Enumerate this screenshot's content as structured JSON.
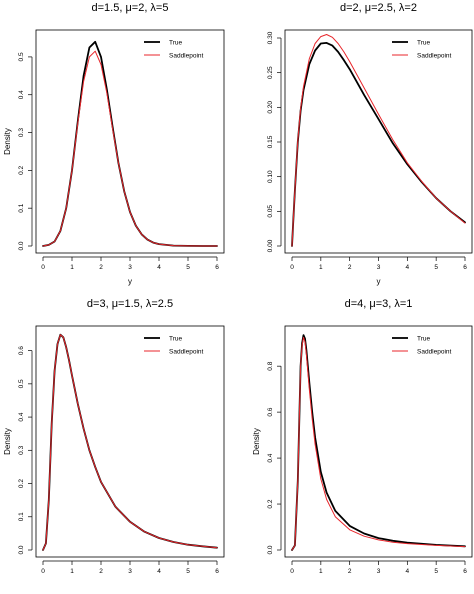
{
  "chart_data": [
    {
      "type": "line",
      "title": "d=1.5, μ=2, λ=5",
      "xlabel": "y",
      "ylabel": "Density",
      "xlim": [
        0,
        6
      ],
      "ylim": [
        0,
        0.55
      ],
      "xticks": [
        "0",
        "1",
        "2",
        "3",
        "4",
        "5",
        "6"
      ],
      "yticks": [
        "0.0",
        "0.1",
        "0.2",
        "0.3",
        "0.4",
        "0.5"
      ],
      "legend": "top-right",
      "series": [
        {
          "name": "True",
          "color": "#000000",
          "x": [
            0,
            0.2,
            0.4,
            0.6,
            0.8,
            1.0,
            1.2,
            1.4,
            1.6,
            1.8,
            2.0,
            2.2,
            2.4,
            2.6,
            2.8,
            3.0,
            3.2,
            3.4,
            3.6,
            3.8,
            4.0,
            4.5,
            5.0,
            5.5,
            6.0
          ],
          "y": [
            0,
            0.003,
            0.012,
            0.04,
            0.1,
            0.2,
            0.33,
            0.45,
            0.525,
            0.54,
            0.5,
            0.415,
            0.315,
            0.22,
            0.145,
            0.09,
            0.054,
            0.031,
            0.017,
            0.009,
            0.005,
            0.001,
            0.0003,
            0.0001,
            0
          ]
        },
        {
          "name": "Saddlepoint",
          "color": "#e8262b",
          "x": [
            0,
            0.2,
            0.4,
            0.6,
            0.8,
            1.0,
            1.2,
            1.4,
            1.6,
            1.8,
            2.0,
            2.2,
            2.4,
            2.6,
            2.8,
            3.0,
            3.2,
            3.4,
            3.6,
            3.8,
            4.0,
            4.5,
            5.0,
            5.5,
            6.0
          ],
          "y": [
            0,
            0.003,
            0.012,
            0.04,
            0.1,
            0.2,
            0.325,
            0.435,
            0.5,
            0.515,
            0.48,
            0.405,
            0.31,
            0.22,
            0.145,
            0.09,
            0.054,
            0.031,
            0.017,
            0.009,
            0.005,
            0.001,
            0.0003,
            0.0001,
            0
          ]
        }
      ]
    },
    {
      "type": "line",
      "title": "d=2, μ=2.5, λ=2",
      "xlabel": "y",
      "ylabel": "",
      "xlim": [
        0,
        6
      ],
      "ylim": [
        0,
        0.3
      ],
      "xticks": [
        "0",
        "1",
        "2",
        "3",
        "4",
        "5",
        "6"
      ],
      "yticks": [
        "0.00",
        "0.05",
        "0.10",
        "0.15",
        "0.20",
        "0.25",
        "0.30"
      ],
      "legend": "top-right",
      "series": [
        {
          "name": "True",
          "color": "#000000",
          "x": [
            0,
            0.05,
            0.1,
            0.2,
            0.3,
            0.4,
            0.6,
            0.8,
            1.0,
            1.2,
            1.4,
            1.6,
            1.8,
            2.0,
            2.5,
            3.0,
            3.5,
            4.0,
            4.5,
            5.0,
            5.5,
            6.0
          ],
          "y": [
            0,
            0.04,
            0.08,
            0.15,
            0.195,
            0.225,
            0.262,
            0.282,
            0.292,
            0.293,
            0.289,
            0.28,
            0.268,
            0.255,
            0.218,
            0.183,
            0.148,
            0.118,
            0.092,
            0.069,
            0.05,
            0.034
          ]
        },
        {
          "name": "Saddlepoint",
          "color": "#e8262b",
          "x": [
            0,
            0.05,
            0.1,
            0.2,
            0.3,
            0.4,
            0.6,
            0.8,
            1.0,
            1.2,
            1.4,
            1.6,
            1.8,
            2.0,
            2.5,
            3.0,
            3.5,
            4.0,
            4.5,
            5.0,
            5.5,
            6.0
          ],
          "y": [
            0,
            0.04,
            0.08,
            0.152,
            0.198,
            0.23,
            0.27,
            0.292,
            0.302,
            0.305,
            0.301,
            0.292,
            0.28,
            0.266,
            0.228,
            0.19,
            0.153,
            0.12,
            0.093,
            0.069,
            0.05,
            0.033
          ]
        }
      ]
    },
    {
      "type": "line",
      "title": "d=3, μ=1.5, λ=2.5",
      "xlabel": "",
      "ylabel": "Density",
      "xlim": [
        0,
        6
      ],
      "ylim": [
        0,
        0.65
      ],
      "xticks": [
        "0",
        "1",
        "2",
        "3",
        "4",
        "5",
        "6"
      ],
      "yticks": [
        "0.0",
        "0.1",
        "0.2",
        "0.3",
        "0.4",
        "0.5",
        "0.6"
      ],
      "legend": "top-right",
      "series": [
        {
          "name": "True",
          "color": "#000000",
          "x": [
            0,
            0.1,
            0.2,
            0.3,
            0.4,
            0.5,
            0.6,
            0.7,
            0.8,
            0.9,
            1.0,
            1.2,
            1.4,
            1.6,
            1.8,
            2.0,
            2.5,
            3.0,
            3.5,
            4.0,
            4.5,
            5.0,
            5.5,
            6.0
          ],
          "y": [
            0,
            0.02,
            0.15,
            0.38,
            0.54,
            0.62,
            0.648,
            0.64,
            0.61,
            0.57,
            0.525,
            0.44,
            0.365,
            0.3,
            0.25,
            0.205,
            0.13,
            0.085,
            0.055,
            0.036,
            0.024,
            0.016,
            0.011,
            0.007
          ]
        },
        {
          "name": "Saddlepoint",
          "color": "#e8262b",
          "x": [
            0,
            0.1,
            0.2,
            0.3,
            0.4,
            0.5,
            0.6,
            0.7,
            0.8,
            0.9,
            1.0,
            1.2,
            1.4,
            1.6,
            1.8,
            2.0,
            2.5,
            3.0,
            3.5,
            4.0,
            4.5,
            5.0,
            5.5,
            6.0
          ],
          "y": [
            0,
            0.02,
            0.15,
            0.38,
            0.54,
            0.62,
            0.648,
            0.64,
            0.61,
            0.57,
            0.525,
            0.44,
            0.365,
            0.3,
            0.25,
            0.205,
            0.13,
            0.085,
            0.055,
            0.036,
            0.024,
            0.016,
            0.011,
            0.007
          ]
        }
      ]
    },
    {
      "type": "line",
      "title": "d=4, μ=3, λ=1",
      "xlabel": "",
      "ylabel": "Density",
      "xlim": [
        0,
        6
      ],
      "ylim": [
        0,
        0.94
      ],
      "xticks": [
        "0",
        "1",
        "2",
        "3",
        "4",
        "5",
        "6"
      ],
      "yticks": [
        "0.0",
        "0.2",
        "0.4",
        "0.6",
        "0.8"
      ],
      "legend": "top-right",
      "series": [
        {
          "name": "True",
          "color": "#000000",
          "x": [
            0,
            0.1,
            0.2,
            0.3,
            0.35,
            0.4,
            0.45,
            0.5,
            0.6,
            0.7,
            0.8,
            1.0,
            1.2,
            1.5,
            2.0,
            2.5,
            3.0,
            3.5,
            4.0,
            5.0,
            6.0
          ],
          "y": [
            0,
            0.02,
            0.3,
            0.8,
            0.9,
            0.935,
            0.92,
            0.87,
            0.73,
            0.6,
            0.49,
            0.34,
            0.25,
            0.17,
            0.105,
            0.072,
            0.052,
            0.04,
            0.032,
            0.022,
            0.016
          ]
        },
        {
          "name": "Saddlepoint",
          "color": "#e8262b",
          "x": [
            0,
            0.1,
            0.2,
            0.3,
            0.35,
            0.4,
            0.45,
            0.5,
            0.6,
            0.7,
            0.8,
            1.0,
            1.2,
            1.5,
            2.0,
            2.5,
            3.0,
            3.5,
            4.0,
            5.0,
            6.0
          ],
          "y": [
            0,
            0.02,
            0.3,
            0.8,
            0.89,
            0.925,
            0.905,
            0.85,
            0.7,
            0.57,
            0.46,
            0.31,
            0.22,
            0.145,
            0.088,
            0.06,
            0.044,
            0.034,
            0.028,
            0.02,
            0.015
          ]
        }
      ]
    }
  ]
}
